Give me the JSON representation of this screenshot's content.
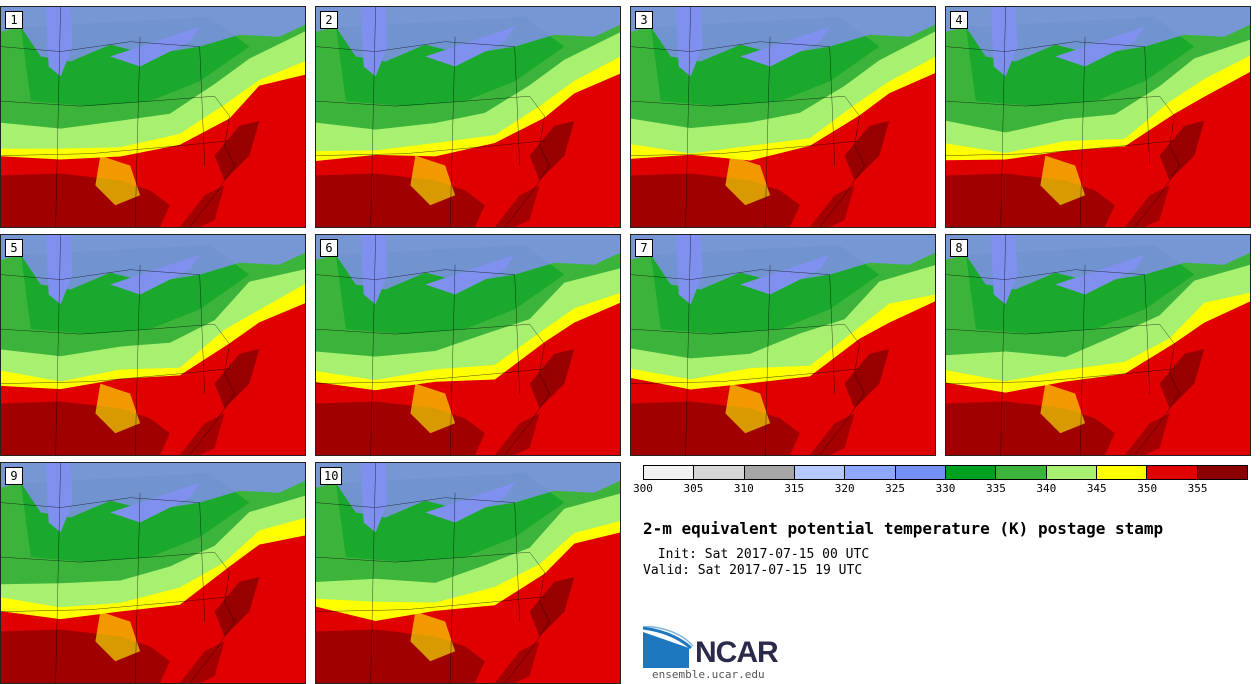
{
  "figure": {
    "title": "2-m equivalent potential temperature (K) postage stamp",
    "init": " Init: Sat 2017-07-15 00 UTC",
    "valid": "Valid: Sat 2017-07-15 19 UTC"
  },
  "members": [
    {
      "label": "1"
    },
    {
      "label": "2"
    },
    {
      "label": "3"
    },
    {
      "label": "4"
    },
    {
      "label": "5"
    },
    {
      "label": "6"
    },
    {
      "label": "7"
    },
    {
      "label": "8"
    },
    {
      "label": "9"
    },
    {
      "label": "10"
    }
  ],
  "colorbar": {
    "ticks": [
      "300",
      "305",
      "310",
      "315",
      "320",
      "325",
      "330",
      "335",
      "340",
      "345",
      "350",
      "355"
    ],
    "colors": [
      "#f2f2f2",
      "#d6d6d6",
      "#a6a6a6",
      "#b5c8ff",
      "#8ea8ff",
      "#7690f5",
      "#00a020",
      "#3cb43c",
      "#a8f070",
      "#ffff00",
      "#e00000",
      "#8b0000"
    ]
  },
  "map_colors": {
    "water_blue": "#8090ee",
    "dark_green": "#00a020",
    "mid_green": "#3cb43c",
    "light_green": "#a8f070",
    "yellow": "#ffff00",
    "red": "#e00000",
    "dark_red": "#8b0000",
    "boundary": "#000000"
  },
  "logo": {
    "name": "NCAR",
    "url": "ensemble.ucar.edu"
  }
}
